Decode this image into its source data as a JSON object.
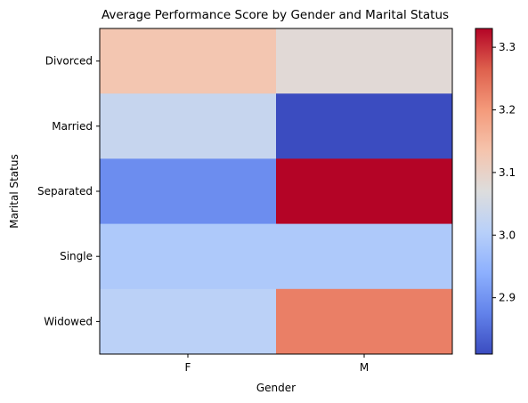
{
  "chart_data": {
    "type": "heatmap",
    "title": "Average Performance Score by Gender and Marital Status",
    "xlabel": "Gender",
    "ylabel": "Marital Status",
    "x_categories": [
      "F",
      "M"
    ],
    "y_categories": [
      "Divorced",
      "Married",
      "Separated",
      "Single",
      "Widowed"
    ],
    "values": [
      [
        3.13,
        3.08
      ],
      [
        3.03,
        2.81
      ],
      [
        2.89,
        3.33
      ],
      [
        2.99,
        2.99
      ],
      [
        3.01,
        3.23
      ]
    ],
    "colorbar": {
      "range": [
        2.81,
        3.33
      ],
      "ticks": [
        "2.9",
        "3.0",
        "3.1",
        "3.2",
        "3.3"
      ],
      "tick_values": [
        2.9,
        3.0,
        3.1,
        3.2,
        3.3
      ]
    },
    "colormap": "coolwarm",
    "grid": false
  }
}
